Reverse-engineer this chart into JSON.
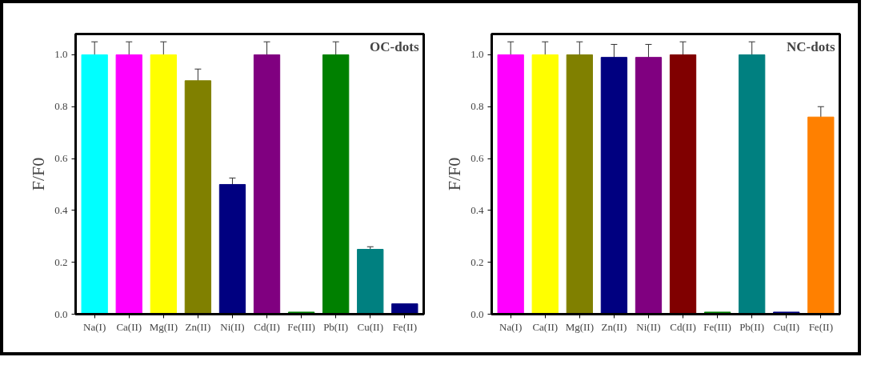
{
  "chart_data": [
    {
      "type": "bar",
      "title": "OC-dots",
      "ylabel": "F/F0",
      "categories": [
        "Na(I)",
        "Ca(II)",
        "Mg(II)",
        "Zn(II)",
        "Ni(II)",
        "Cd(II)",
        "Fe(III)",
        "Pb(II)",
        "Cu(II)",
        "Fe(II)"
      ],
      "values": [
        1.0,
        1.0,
        1.0,
        0.9,
        0.5,
        1.0,
        0.008,
        1.0,
        0.25,
        0.04
      ],
      "errors": [
        0.05,
        0.05,
        0.05,
        0.045,
        0.025,
        0.05,
        null,
        0.05,
        0.01,
        null
      ],
      "colors": [
        "#00ffff",
        "#ff00ff",
        "#ffff00",
        "#808000",
        "#000080",
        "#800080",
        "#008000",
        "#008000",
        "#008080",
        "#000080"
      ],
      "ylim": [
        0,
        1.08
      ],
      "yticks": [
        {
          "value": 0,
          "label": "0.0"
        },
        {
          "value": 0.2,
          "label": "0.2"
        },
        {
          "value": 0.4,
          "label": "0.4"
        },
        {
          "value": 0.6,
          "label": "0.6"
        },
        {
          "value": 0.8,
          "label": "0.8"
        },
        {
          "value": 1,
          "label": "1.0"
        }
      ],
      "grid": false
    },
    {
      "type": "bar",
      "title": "NC-dots",
      "ylabel": "F/F0",
      "categories": [
        "Na(I)",
        "Ca(II)",
        "Mg(II)",
        "Zn(II)",
        "Ni(II)",
        "Cd(II)",
        "Fe(III)",
        "Pb(II)",
        "Cu(II)",
        "Fe(II)"
      ],
      "values": [
        1.0,
        1.0,
        1.0,
        0.99,
        0.99,
        1.0,
        0.008,
        1.0,
        0.008,
        0.76
      ],
      "errors": [
        0.05,
        0.05,
        0.05,
        0.05,
        0.05,
        0.05,
        null,
        0.05,
        null,
        0.04
      ],
      "colors": [
        "#ff00ff",
        "#ffff00",
        "#808000",
        "#000080",
        "#800080",
        "#800000",
        "#008000",
        "#008080",
        "#000080",
        "#ff8000"
      ],
      "ylim": [
        0,
        1.08
      ],
      "yticks": [
        {
          "value": 0,
          "label": "0.0"
        },
        {
          "value": 0.2,
          "label": "0.2"
        },
        {
          "value": 0.4,
          "label": "0.4"
        },
        {
          "value": 0.6,
          "label": "0.6"
        },
        {
          "value": 0.8,
          "label": "0.8"
        },
        {
          "value": 1,
          "label": "1.0"
        }
      ],
      "grid": false
    }
  ]
}
